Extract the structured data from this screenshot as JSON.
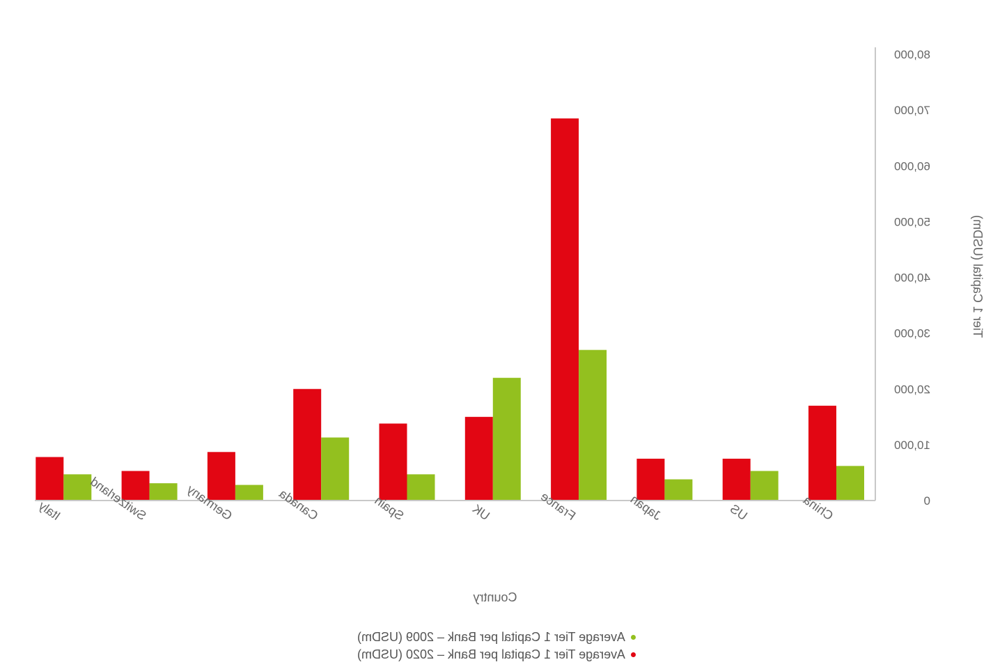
{
  "chart_data": {
    "type": "bar",
    "orientation": "mirrored",
    "categories": [
      "China",
      "US",
      "Japan",
      "France",
      "UK",
      "Spain",
      "Canada",
      "Germany",
      "Switzerland",
      "Italy"
    ],
    "series": [
      {
        "name": "Average Tier 1 Capital per Bank – 2020 (USDm)",
        "color": "#e20613",
        "values": [
          17000,
          7500,
          7500,
          68500,
          15000,
          13800,
          20000,
          8700,
          5300,
          7800
        ]
      },
      {
        "name": "Average Tier 1 Capital per Bank – 2009 (USDm)",
        "color": "#93c01f",
        "values": [
          6200,
          5300,
          3800,
          27000,
          22000,
          4700,
          11300,
          2800,
          3100,
          4700
        ]
      }
    ],
    "yticks": [
      "0",
      "10,000",
      "20,000",
      "30,000",
      "40,000",
      "50,000",
      "60,000",
      "70,000",
      "80,000"
    ],
    "ylim": [
      0,
      80000
    ],
    "xlabel": "Country",
    "ylabel": "Tier 1 Capital (USDm)",
    "grid": false,
    "legend_position": "bottom-center",
    "legend_order": [
      1,
      0
    ]
  }
}
